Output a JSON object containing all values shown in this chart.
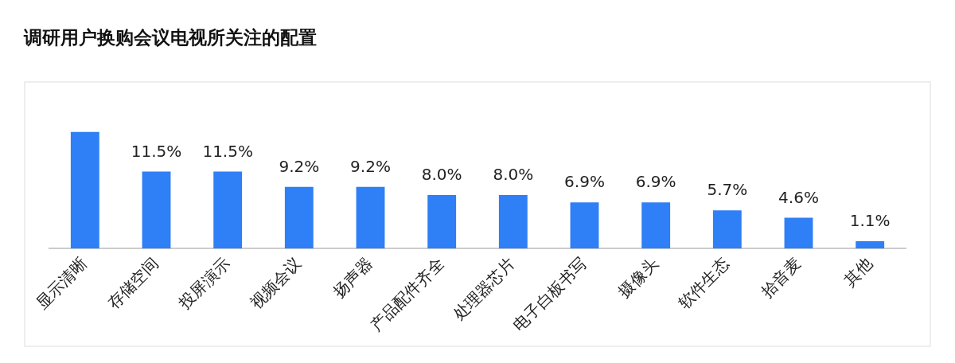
{
  "chart_data": {
    "type": "bar",
    "title": "调研用户换购会议电视所关注的配置",
    "categories": [
      "显示清晰",
      "存储空间",
      "投屏演示",
      "视频会议",
      "扬声器",
      "产品配件齐全",
      "处理器芯片",
      "电子白板书写",
      "摄像头",
      "软件生态",
      "拾音麦",
      "其他"
    ],
    "values": [
      17.4,
      11.5,
      11.5,
      9.2,
      9.2,
      8.0,
      8.0,
      6.9,
      6.9,
      5.7,
      4.6,
      1.1
    ],
    "value_labels": [
      null,
      "11.5%",
      "11.5%",
      "9.2%",
      "9.2%",
      "8.0%",
      "8.0%",
      "6.9%",
      "6.9%",
      "5.7%",
      "4.6%",
      "1.1%"
    ],
    "color": "#2f7ff6",
    "grid": false,
    "legend": false
  }
}
